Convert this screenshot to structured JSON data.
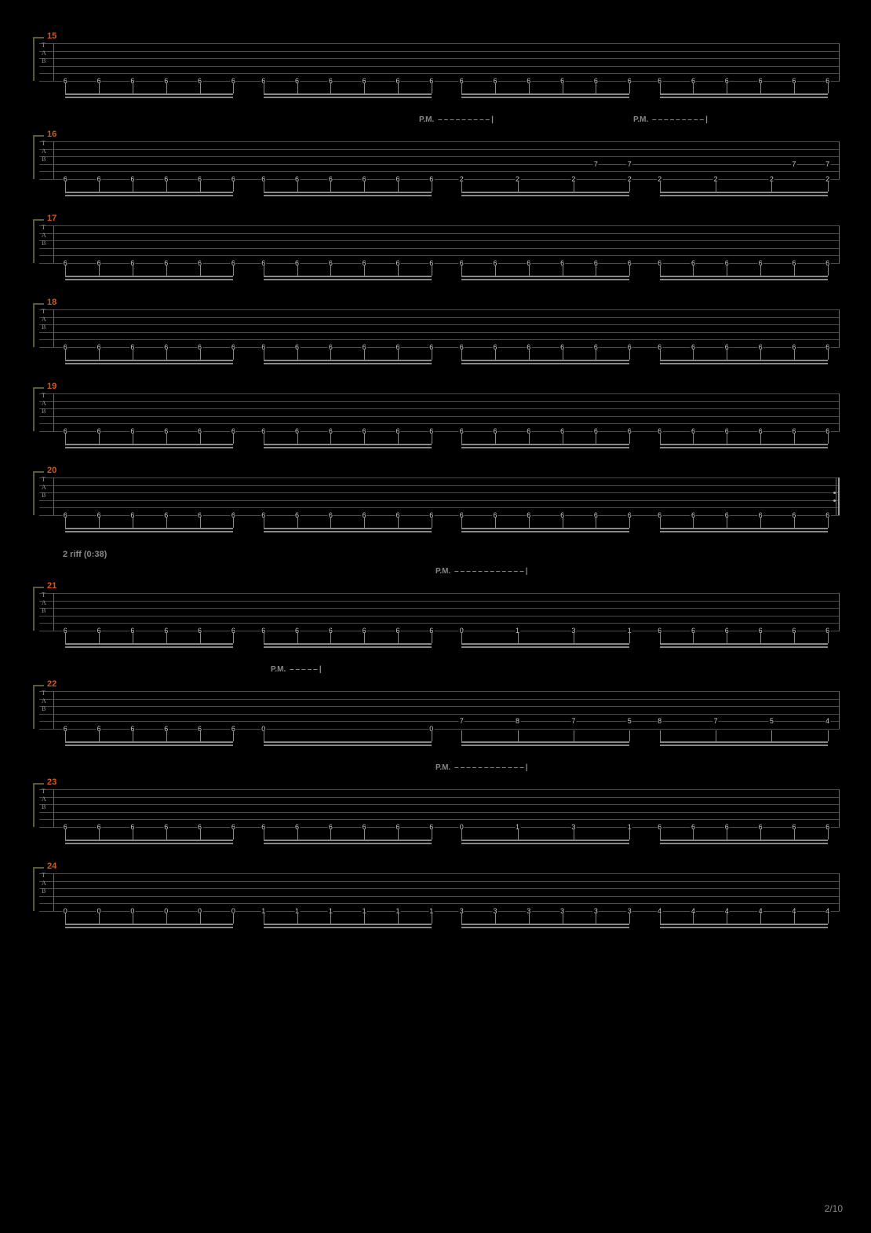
{
  "page_number": "2/10",
  "colors": {
    "background": "#000000",
    "measure_number": "#d8581a",
    "staff_line": "#4a4a4a",
    "text": "#cccccc",
    "annotation": "#888888",
    "bracket": "#5a5a35"
  },
  "tab_clef_labels": [
    "T",
    "A",
    "B"
  ],
  "pm_label": "P.M.",
  "section_label_21": "2 riff (0:38)",
  "measures": [
    {
      "number": "15",
      "pm": [],
      "has_repeat_end": false,
      "groups": [
        {
          "string": 5,
          "frets": [
            "6",
            "6",
            "6",
            "6",
            "6",
            "6"
          ]
        },
        {
          "string": 5,
          "frets": [
            "6",
            "6",
            "6",
            "6",
            "6",
            "6"
          ]
        },
        {
          "string": 5,
          "frets": [
            "6",
            "6",
            "6",
            "6",
            "6",
            "6"
          ]
        },
        {
          "string": 5,
          "frets": [
            "6",
            "6",
            "6",
            "6",
            "6",
            "6"
          ]
        }
      ]
    },
    {
      "number": "16",
      "pm": [
        {
          "left_pct": 48,
          "dashes": 9
        },
        {
          "left_pct": 74,
          "dashes": 9
        }
      ],
      "has_repeat_end": false,
      "groups": [
        {
          "string": 5,
          "frets": [
            "6",
            "6",
            "6",
            "6",
            "6",
            "6"
          ]
        },
        {
          "string": 5,
          "frets": [
            "6",
            "6",
            "6",
            "6",
            "6",
            "6"
          ]
        },
        {
          "string": 5,
          "frets": [
            "2",
            "2",
            "2",
            "2"
          ],
          "upper_string": 3,
          "upper_frets": [
            "",
            "",
            "",
            "",
            "7",
            "7"
          ]
        },
        {
          "string": 5,
          "frets": [
            "2",
            "2",
            "2",
            "2"
          ],
          "upper_string": 3,
          "upper_frets": [
            "",
            "",
            "",
            "",
            "7",
            "7"
          ]
        }
      ]
    },
    {
      "number": "17",
      "pm": [],
      "has_repeat_end": false,
      "groups": [
        {
          "string": 5,
          "frets": [
            "6",
            "6",
            "6",
            "6",
            "6",
            "6"
          ]
        },
        {
          "string": 5,
          "frets": [
            "6",
            "6",
            "6",
            "6",
            "6",
            "6"
          ]
        },
        {
          "string": 5,
          "frets": [
            "6",
            "6",
            "6",
            "6",
            "6",
            "6"
          ]
        },
        {
          "string": 5,
          "frets": [
            "6",
            "6",
            "6",
            "6",
            "6",
            "6"
          ]
        }
      ]
    },
    {
      "number": "18",
      "pm": [],
      "has_repeat_end": false,
      "groups": [
        {
          "string": 5,
          "frets": [
            "6",
            "6",
            "6",
            "6",
            "6",
            "6"
          ]
        },
        {
          "string": 5,
          "frets": [
            "6",
            "6",
            "6",
            "6",
            "6",
            "6"
          ]
        },
        {
          "string": 5,
          "frets": [
            "6",
            "6",
            "6",
            "6",
            "6",
            "6"
          ]
        },
        {
          "string": 5,
          "frets": [
            "6",
            "6",
            "6",
            "6",
            "6",
            "6"
          ]
        }
      ]
    },
    {
      "number": "19",
      "pm": [],
      "has_repeat_end": false,
      "groups": [
        {
          "string": 5,
          "frets": [
            "6",
            "6",
            "6",
            "6",
            "6",
            "6"
          ]
        },
        {
          "string": 5,
          "frets": [
            "6",
            "6",
            "6",
            "6",
            "6",
            "6"
          ]
        },
        {
          "string": 5,
          "frets": [
            "6",
            "6",
            "6",
            "6",
            "6",
            "6"
          ]
        },
        {
          "string": 5,
          "frets": [
            "6",
            "6",
            "6",
            "6",
            "6",
            "6"
          ]
        }
      ]
    },
    {
      "number": "20",
      "pm": [],
      "has_repeat_end": true,
      "groups": [
        {
          "string": 5,
          "frets": [
            "6",
            "6",
            "6",
            "6",
            "6",
            "6"
          ]
        },
        {
          "string": 5,
          "frets": [
            "6",
            "6",
            "6",
            "6",
            "6",
            "6"
          ]
        },
        {
          "string": 5,
          "frets": [
            "6",
            "6",
            "6",
            "6",
            "6",
            "6"
          ]
        },
        {
          "string": 5,
          "frets": [
            "6",
            "6",
            "6",
            "6",
            "6",
            "6"
          ]
        }
      ]
    },
    {
      "number": "21",
      "section_label": true,
      "pm": [
        {
          "left_pct": 50,
          "dashes": 12
        }
      ],
      "has_repeat_end": false,
      "groups": [
        {
          "string": 5,
          "frets": [
            "6",
            "6",
            "6",
            "6",
            "6",
            "6"
          ]
        },
        {
          "string": 5,
          "frets": [
            "6",
            "6",
            "6",
            "6",
            "6",
            "6"
          ]
        },
        {
          "string": 5,
          "frets": [
            "0",
            "1",
            "3",
            "1"
          ]
        },
        {
          "string": 5,
          "frets": [
            "6",
            "6",
            "6",
            "6",
            "6",
            "6"
          ]
        }
      ]
    },
    {
      "number": "22",
      "pm": [
        {
          "left_pct": 30,
          "dashes": 5
        }
      ],
      "has_repeat_end": false,
      "groups": [
        {
          "string": 5,
          "frets": [
            "6",
            "6",
            "6",
            "6",
            "6",
            "6"
          ]
        },
        {
          "string": 5,
          "frets": [
            "0",
            "0"
          ],
          "count": 2
        },
        {
          "string": 4,
          "frets": [
            "7",
            "8",
            "7",
            "5"
          ]
        },
        {
          "string": 4,
          "frets": [
            "8",
            "7",
            "5",
            "4"
          ]
        }
      ]
    },
    {
      "number": "23",
      "pm": [
        {
          "left_pct": 50,
          "dashes": 12
        }
      ],
      "has_repeat_end": false,
      "groups": [
        {
          "string": 5,
          "frets": [
            "6",
            "6",
            "6",
            "6",
            "6",
            "6"
          ]
        },
        {
          "string": 5,
          "frets": [
            "6",
            "6",
            "6",
            "6",
            "6",
            "6"
          ]
        },
        {
          "string": 5,
          "frets": [
            "0",
            "1",
            "3",
            "1"
          ]
        },
        {
          "string": 5,
          "frets": [
            "6",
            "6",
            "6",
            "6",
            "6",
            "6"
          ]
        }
      ]
    },
    {
      "number": "24",
      "pm": [],
      "has_repeat_end": false,
      "groups": [
        {
          "string": 5,
          "frets": [
            "0",
            "0",
            "0",
            "0",
            "0",
            "0"
          ]
        },
        {
          "string": 5,
          "frets": [
            "1",
            "1",
            "1",
            "1",
            "1",
            "1"
          ]
        },
        {
          "string": 5,
          "frets": [
            "3",
            "3",
            "3",
            "3",
            "3",
            "3"
          ]
        },
        {
          "string": 5,
          "frets": [
            "4",
            "4",
            "4",
            "4",
            "4",
            "4"
          ]
        }
      ]
    }
  ]
}
